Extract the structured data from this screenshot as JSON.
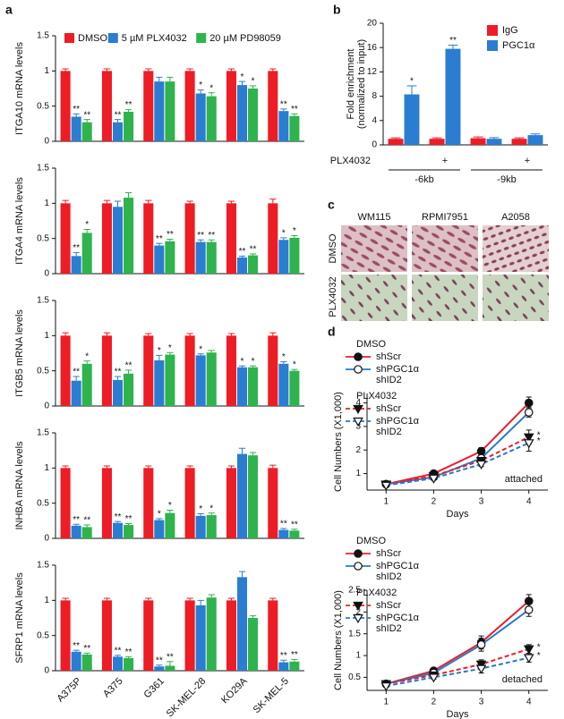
{
  "panel_labels": [
    "a",
    "b",
    "c",
    "d"
  ],
  "chart_data": [
    {
      "type": "bar",
      "ylabel": "ITGA10 mRNA levels",
      "ylim": [
        0,
        1.5
      ],
      "yticks": [
        0,
        0.5,
        1,
        1.5
      ],
      "legend": "top",
      "series": [
        {
          "name": "DMSO",
          "color": "#ee1c25",
          "values": [
            1,
            1,
            1,
            1,
            1,
            1
          ],
          "errors": [
            0.03,
            0.03,
            0.03,
            0.03,
            0.03,
            0.03
          ],
          "stars": [
            null,
            null,
            null,
            null,
            null,
            null
          ]
        },
        {
          "name": "5 µM PLX4032",
          "color": "#2a7dd1",
          "values": [
            0.35,
            0.27,
            0.85,
            0.68,
            0.8,
            0.43
          ],
          "errors": [
            0.04,
            0.04,
            0.06,
            0.05,
            0.05,
            0.03
          ],
          "stars": [
            "**",
            "**",
            null,
            "*",
            "*",
            "**"
          ]
        },
        {
          "name": "20 µM PD98059",
          "color": "#2eb34d",
          "values": [
            0.27,
            0.42,
            0.85,
            0.64,
            0.75,
            0.36
          ],
          "errors": [
            0.04,
            0.03,
            0.06,
            0.05,
            0.04,
            0.03
          ],
          "stars": [
            "**",
            "**",
            null,
            "*",
            "*",
            "**"
          ]
        }
      ]
    },
    {
      "type": "bar",
      "ylabel": "ITGA4 mRNA levels",
      "ylim": [
        0,
        1.5
      ],
      "yticks": [
        0,
        0.5,
        1,
        1.5
      ],
      "series": [
        {
          "color": "#ee1c25",
          "values": [
            1,
            1,
            1,
            1,
            1,
            1
          ],
          "errors": [
            0.04,
            0.04,
            0.04,
            0.03,
            0.03,
            0.06
          ],
          "stars": [
            null,
            null,
            null,
            null,
            null,
            null
          ]
        },
        {
          "color": "#2a7dd1",
          "values": [
            0.25,
            0.95,
            0.4,
            0.45,
            0.23,
            0.48
          ],
          "errors": [
            0.05,
            0.08,
            0.03,
            0.03,
            0.02,
            0.03
          ],
          "stars": [
            "**",
            null,
            "**",
            "**",
            "**",
            "*"
          ]
        },
        {
          "color": "#2eb34d",
          "values": [
            0.58,
            1.08,
            0.46,
            0.45,
            0.26,
            0.51
          ],
          "errors": [
            0.05,
            0.07,
            0.03,
            0.03,
            0.02,
            0.03
          ],
          "stars": [
            "*",
            null,
            "**",
            "**",
            "**",
            "*"
          ]
        }
      ]
    },
    {
      "type": "bar",
      "ylabel": "ITGB5 mRNA levels",
      "ylim": [
        0,
        1.5
      ],
      "yticks": [
        0,
        0.5,
        1,
        1.5
      ],
      "series": [
        {
          "color": "#ee1c25",
          "values": [
            1,
            1,
            1,
            1,
            1,
            1
          ],
          "errors": [
            0.04,
            0.04,
            0.03,
            0.03,
            0.03,
            0.04
          ],
          "stars": [
            null,
            null,
            null,
            null,
            null,
            null
          ]
        },
        {
          "color": "#2a7dd1",
          "values": [
            0.36,
            0.37,
            0.65,
            0.72,
            0.55,
            0.6
          ],
          "errors": [
            0.06,
            0.05,
            0.07,
            0.02,
            0.02,
            0.03
          ],
          "stars": [
            "**",
            "**",
            "*",
            "*",
            "*",
            "*"
          ]
        },
        {
          "color": "#2eb34d",
          "values": [
            0.6,
            0.46,
            0.73,
            0.76,
            0.55,
            0.5
          ],
          "errors": [
            0.04,
            0.05,
            0.03,
            0.03,
            0.02,
            0.02
          ],
          "stars": [
            "*",
            "**",
            "*",
            null,
            "*",
            "*"
          ]
        }
      ]
    },
    {
      "type": "bar",
      "ylabel": "INHBA mRNA levels",
      "ylim": [
        0,
        1.5
      ],
      "yticks": [
        0,
        0.5,
        1,
        1.5
      ],
      "series": [
        {
          "color": "#ee1c25",
          "values": [
            1,
            1,
            1,
            1,
            1,
            1
          ],
          "errors": [
            0.03,
            0.03,
            0.03,
            0.03,
            0.03,
            0.04
          ],
          "stars": [
            null,
            null,
            null,
            null,
            null,
            null
          ]
        },
        {
          "color": "#2a7dd1",
          "values": [
            0.18,
            0.22,
            0.26,
            0.32,
            1.2,
            0.12
          ],
          "errors": [
            0.02,
            0.02,
            0.02,
            0.03,
            0.08,
            0.02
          ],
          "stars": [
            "**",
            "**",
            "*",
            "*",
            null,
            "**"
          ]
        },
        {
          "color": "#2eb34d",
          "values": [
            0.16,
            0.19,
            0.36,
            0.33,
            1.18,
            0.11
          ],
          "errors": [
            0.03,
            0.02,
            0.04,
            0.03,
            0.04,
            0.02
          ],
          "stars": [
            "**",
            "**",
            "*",
            "*",
            null,
            "**"
          ]
        }
      ]
    },
    {
      "type": "bar",
      "ylabel": "SFRP1 mRNA levels",
      "ylim": [
        0,
        1.5
      ],
      "yticks": [
        0,
        0.5,
        1,
        1.5
      ],
      "categories": [
        "A375P",
        "A375",
        "G361",
        "SK-MEL-28",
        "KO29A",
        "SK-MEL-5"
      ],
      "series": [
        {
          "color": "#ee1c25",
          "values": [
            1,
            1,
            1,
            1,
            1,
            1
          ],
          "errors": [
            0.03,
            0.03,
            0.03,
            0.03,
            0.03,
            0.03
          ],
          "stars": [
            null,
            null,
            null,
            null,
            null,
            null
          ]
        },
        {
          "color": "#2a7dd1",
          "values": [
            0.27,
            0.2,
            0.06,
            0.93,
            1.33,
            0.12
          ],
          "errors": [
            0.02,
            0.02,
            0.02,
            0.07,
            0.08,
            0.03
          ],
          "stars": [
            "**",
            "**",
            "**",
            null,
            null,
            "**"
          ]
        },
        {
          "color": "#2eb34d",
          "values": [
            0.23,
            0.18,
            0.07,
            1.04,
            0.75,
            0.13
          ],
          "errors": [
            0.02,
            0.02,
            0.06,
            0.04,
            0.03,
            0.03
          ],
          "stars": [
            "**",
            "**",
            "**",
            null,
            null,
            "**"
          ]
        }
      ]
    },
    {
      "type": "bar",
      "ylabel": [
        "Fold enrichment",
        "(normalized to input)"
      ],
      "ylim": [
        0,
        20
      ],
      "yticks": [
        0,
        4,
        8,
        12,
        16,
        20
      ],
      "legend": "top-right",
      "categories": [
        null,
        "+",
        null,
        "+"
      ],
      "category_row_label": "PLX4032",
      "category_groups": [
        "-6kb",
        "-9kb"
      ],
      "series": [
        {
          "name": "IgG",
          "color": "#ee1c25",
          "values": [
            1,
            1,
            1.1,
            1
          ],
          "errors": [
            0.15,
            0.15,
            0.2,
            0.15
          ],
          "stars": [
            null,
            null,
            null,
            null
          ]
        },
        {
          "name": "PGC1α",
          "color": "#2a7dd1",
          "values": [
            8.3,
            15.8,
            1,
            1.6
          ],
          "errors": [
            1.4,
            0.6,
            0.2,
            0.2
          ],
          "stars": [
            "*",
            "**",
            null,
            null
          ]
        }
      ]
    },
    {
      "type": "line",
      "xlabel": "Days",
      "ylabel": "Cell Numbers (X1,000)",
      "annotation": "attached",
      "x": [
        1,
        2,
        3,
        4
      ],
      "xlim": [
        0.6,
        4.4
      ],
      "xticks": [
        1,
        2,
        3,
        4
      ],
      "ylim": [
        0.3,
        4.4
      ],
      "yticks": [
        1,
        2,
        3,
        4
      ],
      "groups": [
        {
          "name": "DMSO",
          "series": [
            {
              "name": "shScr",
              "color": "#e8202a",
              "dashed": false,
              "marker": "circle",
              "marker_filled": true,
              "values": [
                0.55,
                1.0,
                1.95,
                4.0
              ],
              "errors": [
                0.05,
                0.08,
                0.15,
                0.25
              ],
              "stars": [
                null,
                null,
                null,
                null
              ]
            },
            {
              "name": "shPGC1α shID2",
              "color": "#2979c9",
              "dashed": false,
              "marker": "circle",
              "marker_filled": false,
              "values": [
                0.55,
                0.85,
                1.65,
                3.6
              ],
              "errors": [
                0.05,
                0.06,
                0.12,
                0.2
              ],
              "stars": [
                null,
                null,
                null,
                null
              ]
            }
          ]
        },
        {
          "name": "PLX4032",
          "series": [
            {
              "name": "shScr",
              "color": "#e8202a",
              "dashed": true,
              "marker": "triangle-down",
              "marker_filled": true,
              "values": [
                0.55,
                0.9,
                1.55,
                2.55
              ],
              "errors": [
                0.05,
                0.06,
                0.12,
                0.3
              ],
              "stars": [
                null,
                null,
                null,
                "*"
              ]
            },
            {
              "name": "shPGC1α shID2",
              "color": "#2979c9",
              "dashed": true,
              "marker": "triangle-down",
              "marker_filled": false,
              "values": [
                0.5,
                0.8,
                1.4,
                2.3
              ],
              "errors": [
                0.05,
                0.05,
                0.1,
                0.35
              ],
              "stars": [
                null,
                null,
                null,
                "*"
              ]
            }
          ]
        }
      ]
    },
    {
      "type": "line",
      "xlabel": "Days",
      "ylabel": "Cell Numbers (X1,000)",
      "annotation": "detached",
      "x": [
        1,
        2,
        3,
        4
      ],
      "xlim": [
        0.6,
        4.4
      ],
      "xticks": [
        1,
        2,
        3,
        4
      ],
      "ylim": [
        0.2,
        2.5
      ],
      "yticks": [
        0.5,
        1,
        1.5,
        2,
        2.5
      ],
      "groups": [
        {
          "name": "DMSO",
          "series": [
            {
              "name": "shScr",
              "color": "#e8202a",
              "dashed": false,
              "marker": "circle",
              "marker_filled": true,
              "values": [
                0.35,
                0.65,
                1.3,
                2.25
              ],
              "errors": [
                0.03,
                0.05,
                0.15,
                0.15
              ],
              "stars": [
                null,
                null,
                null,
                null
              ]
            },
            {
              "name": "shPGC1α shID2",
              "color": "#2979c9",
              "dashed": false,
              "marker": "circle",
              "marker_filled": false,
              "values": [
                0.35,
                0.6,
                1.25,
                2.05
              ],
              "errors": [
                0.03,
                0.05,
                0.15,
                0.15
              ],
              "stars": [
                null,
                null,
                null,
                null
              ]
            }
          ]
        },
        {
          "name": "PLX4032",
          "series": [
            {
              "name": "shScr",
              "color": "#e8202a",
              "dashed": true,
              "marker": "triangle-down",
              "marker_filled": true,
              "values": [
                0.35,
                0.55,
                0.8,
                1.15
              ],
              "errors": [
                0.03,
                0.04,
                0.1,
                0.1
              ],
              "stars": [
                null,
                null,
                null,
                "*"
              ]
            },
            {
              "name": "shPGC1α shID2",
              "color": "#2979c9",
              "dashed": true,
              "marker": "triangle-down",
              "marker_filled": false,
              "values": [
                0.3,
                0.5,
                0.7,
                0.95
              ],
              "errors": [
                0.03,
                0.04,
                0.1,
                0.1
              ],
              "stars": [
                null,
                null,
                null,
                "*"
              ]
            }
          ]
        }
      ]
    }
  ],
  "image_panel": {
    "columns": [
      "WM115",
      "RPMI7951",
      "A2058"
    ],
    "rows": [
      "DMSO",
      "PLX4032"
    ]
  }
}
